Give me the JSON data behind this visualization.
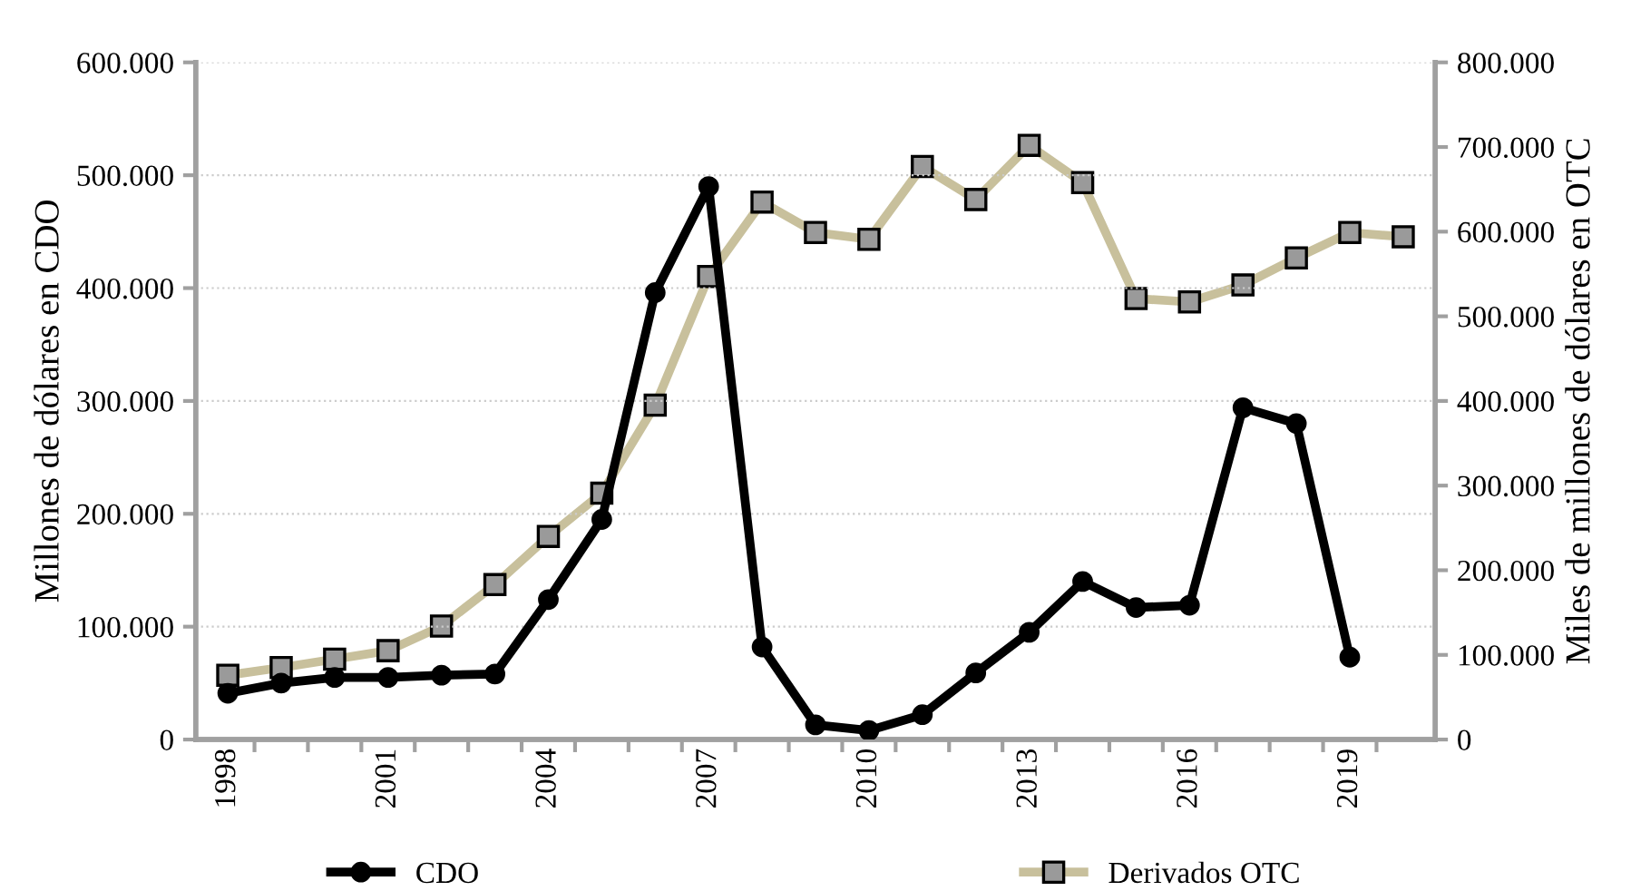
{
  "chart_data": {
    "type": "line",
    "ylabel": "Millones de dólares en CDO",
    "y2label": "Miles de millones de dólares en OTC",
    "categories": [
      "1998",
      null,
      null,
      "2001",
      null,
      null,
      "2004",
      null,
      null,
      "2007",
      null,
      null,
      "2010",
      null,
      null,
      "2013",
      null,
      null,
      "2016",
      null,
      null,
      "2019",
      null
    ],
    "series": [
      {
        "name": "CDO",
        "color": "#000000",
        "marker": "circle",
        "values": [
          41000,
          50000,
          55000,
          55000,
          57000,
          58000,
          124000,
          195000,
          396000,
          490000,
          82000,
          13000,
          8000,
          22000,
          59000,
          95000,
          140000,
          117000,
          119000,
          294000,
          280000,
          73000,
          null
        ]
      },
      {
        "name": "Derivados OTC",
        "color": "#c8c09c",
        "marker": "square",
        "axis": "y2",
        "values": [
          76000,
          85000,
          95000,
          105000,
          134000,
          183000,
          240000,
          291000,
          395000,
          547000,
          635000,
          599000,
          591000,
          677000,
          638000,
          702000,
          658000,
          521000,
          517000,
          537000,
          569000,
          599000,
          594000
        ]
      }
    ],
    "ylim": [
      0,
      600000
    ],
    "yticks": [
      0,
      {
        "value": 100000,
        "label": "100.000"
      },
      {
        "value": 200000,
        "label": "200.000"
      },
      {
        "value": 300000,
        "label": "300.000"
      },
      {
        "value": 400000,
        "label": "400.000"
      },
      {
        "value": 500000,
        "label": "500.000"
      },
      {
        "value": 600000,
        "label": "600.000"
      }
    ],
    "y2lim": [
      0,
      800000
    ],
    "y2ticks": [
      0,
      {
        "value": 100000,
        "label": "100.000"
      },
      {
        "value": 200000,
        "label": "200.000"
      },
      {
        "value": 300000,
        "label": "300.000"
      },
      {
        "value": 400000,
        "label": "400.000"
      },
      {
        "value": 500000,
        "label": "500.000"
      },
      {
        "value": 600000,
        "label": "600.000"
      },
      {
        "value": 700000,
        "label": "700.000"
      },
      {
        "value": 800000,
        "label": "800.000"
      }
    ],
    "grid": "y",
    "legend": "bottom",
    "line_style": "solid"
  }
}
